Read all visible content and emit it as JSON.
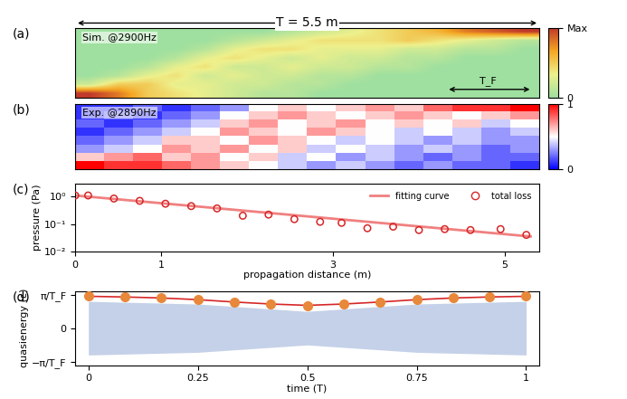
{
  "chart_data": [
    {
      "type": "heatmap",
      "panel": "(a)",
      "title": "T = 5.5 m",
      "annotations": [
        "Sim. @2900Hz",
        "T_F"
      ],
      "tick_labels": false,
      "cells": [
        [
          0,
          0,
          0,
          0,
          0,
          0,
          0,
          0.1,
          0.2,
          0.3,
          0.4,
          0.5,
          0.6,
          0.8,
          0.9,
          1
        ],
        [
          0,
          0,
          0,
          0,
          0,
          0.1,
          0.2,
          0.3,
          0.4,
          0.4,
          0.4,
          0.5,
          0.4,
          0.3,
          0.2,
          0.1
        ],
        [
          0,
          0,
          0,
          0,
          0.1,
          0.3,
          0.4,
          0.4,
          0.3,
          0.3,
          0.3,
          0.2,
          0.2,
          0.1,
          0.1,
          0
        ],
        [
          0,
          0,
          0,
          0.1,
          0.3,
          0.4,
          0.3,
          0.2,
          0.3,
          0.2,
          0.2,
          0.1,
          0.1,
          0,
          0,
          0
        ],
        [
          0,
          0,
          0.1,
          0.3,
          0.4,
          0.2,
          0.2,
          0.3,
          0.2,
          0.2,
          0.1,
          0.1,
          0,
          0,
          0,
          0
        ],
        [
          0,
          0.1,
          0.3,
          0.4,
          0.2,
          0.3,
          0.2,
          0.2,
          0.1,
          0.1,
          0,
          0,
          0,
          0,
          0,
          0
        ],
        [
          0.2,
          0.5,
          0.5,
          0.3,
          0.3,
          0.2,
          0.2,
          0.1,
          0.1,
          0,
          0,
          0,
          0,
          0,
          0,
          0
        ],
        [
          1,
          0.8,
          0.5,
          0.4,
          0.3,
          0.2,
          0.1,
          0.1,
          0,
          0,
          0,
          0,
          0,
          0,
          0,
          0
        ]
      ],
      "colorbar_range": [
        0,
        1
      ],
      "colorbar_ticks": [
        0,
        {
          "value": 1,
          "label": "Max"
        }
      ]
    },
    {
      "type": "heatmap",
      "panel": "(b)",
      "annotations": [
        "Exp. @2890Hz"
      ],
      "tick_labels": false,
      "cells": [
        [
          0.1,
          0.1,
          0.2,
          0.1,
          0.2,
          0.3,
          0.5,
          0.6,
          0.5,
          0.6,
          0.7,
          0.6,
          0.8,
          0.9,
          0.9,
          1
        ],
        [
          0.1,
          0.2,
          0.1,
          0.2,
          0.3,
          0.5,
          0.6,
          0.7,
          0.6,
          0.5,
          0.6,
          0.7,
          0.6,
          0.5,
          0.6,
          0.7
        ],
        [
          0.2,
          0.1,
          0.2,
          0.3,
          0.4,
          0.6,
          0.7,
          0.5,
          0.6,
          0.7,
          0.5,
          0.6,
          0.5,
          0.6,
          0.4,
          0.5
        ],
        [
          0.1,
          0.2,
          0.3,
          0.4,
          0.5,
          0.7,
          0.6,
          0.5,
          0.7,
          0.6,
          0.5,
          0.4,
          0.5,
          0.4,
          0.3,
          0.4
        ],
        [
          0.2,
          0.3,
          0.4,
          0.6,
          0.6,
          0.5,
          0.7,
          0.6,
          0.5,
          0.4,
          0.5,
          0.4,
          0.3,
          0.4,
          0.3,
          0.3
        ],
        [
          0.3,
          0.4,
          0.5,
          0.7,
          0.6,
          0.7,
          0.5,
          0.6,
          0.4,
          0.5,
          0.4,
          0.3,
          0.4,
          0.3,
          0.2,
          0.3
        ],
        [
          0.6,
          0.7,
          0.8,
          0.6,
          0.7,
          0.5,
          0.6,
          0.4,
          0.5,
          0.3,
          0.4,
          0.3,
          0.2,
          0.3,
          0.2,
          0.2
        ],
        [
          1,
          0.9,
          0.9,
          0.8,
          0.7,
          0.6,
          0.5,
          0.4,
          0.3,
          0.4,
          0.3,
          0.2,
          0.3,
          0.2,
          0.2,
          0.1
        ]
      ],
      "colorbar_range": [
        0,
        1
      ],
      "colorbar_ticks": [
        0,
        1
      ]
    },
    {
      "type": "scatter",
      "panel": "(c)",
      "x_label": "propagation distance (m)",
      "y_label": "pressure (Pa)",
      "log": "y",
      "legend": "upper right",
      "grid": false,
      "xlim": [
        0,
        5.4
      ],
      "xticks": [
        0,
        1,
        3,
        5
      ],
      "ylim": [
        0.01,
        3
      ],
      "yticks": [
        {
          "value": 0.01,
          "label": "10⁻²"
        },
        {
          "value": 0.1,
          "label": "10⁻¹"
        },
        {
          "value": 1,
          "label": "10⁰"
        }
      ],
      "series": [
        {
          "name": "fitting curve",
          "type": "line",
          "color": "#f08080",
          "x": [
            0,
            5.3
          ],
          "values": [
            1.1,
            0.035
          ]
        },
        {
          "name": "total loss",
          "type": "scatter",
          "marker": "o",
          "color": "#d62728",
          "x": [
            0,
            0.15,
            0.45,
            0.75,
            1.05,
            1.35,
            1.65,
            1.95,
            2.25,
            2.55,
            2.85,
            3.1,
            3.4,
            3.7,
            4.0,
            4.3,
            4.6,
            4.95,
            5.25
          ],
          "values": [
            1.1,
            1.1,
            0.85,
            0.7,
            0.55,
            0.45,
            0.37,
            0.2,
            0.22,
            0.15,
            0.12,
            0.11,
            0.07,
            0.08,
            0.06,
            0.065,
            0.06,
            0.065,
            0.04
          ]
        }
      ]
    },
    {
      "type": "line",
      "panel": "(d)",
      "x_label": "time (T)",
      "y_label": "quasienergy (ε)",
      "xlim": [
        -0.03,
        1.03
      ],
      "xticks": [
        0,
        0.25,
        0.5,
        0.75,
        1
      ],
      "ylim": [
        -1.1,
        1.1
      ],
      "yticks": [
        {
          "value": -1,
          "label": "−π/T_F"
        },
        0,
        {
          "value": 1,
          "label": "π/T_F"
        }
      ],
      "series": [
        {
          "type": "band",
          "color": "#9fb3d9",
          "x": [
            0,
            0.25,
            0.5,
            0.75,
            1
          ],
          "values": [
            0.8,
            0.72,
            0.5,
            0.72,
            0.8
          ],
          "lower": [
            -0.8,
            -0.72,
            -0.5,
            -0.72,
            -0.8
          ]
        },
        {
          "type": "line",
          "color": "#e8883a",
          "marker": "o",
          "x": [
            0,
            0.083,
            0.167,
            0.25,
            0.333,
            0.417,
            0.5,
            0.583,
            0.667,
            0.75,
            0.833,
            0.917,
            1
          ],
          "values": [
            0.95,
            0.93,
            0.9,
            0.85,
            0.78,
            0.72,
            0.68,
            0.72,
            0.78,
            0.85,
            0.9,
            0.93,
            0.95
          ]
        }
      ]
    }
  ]
}
